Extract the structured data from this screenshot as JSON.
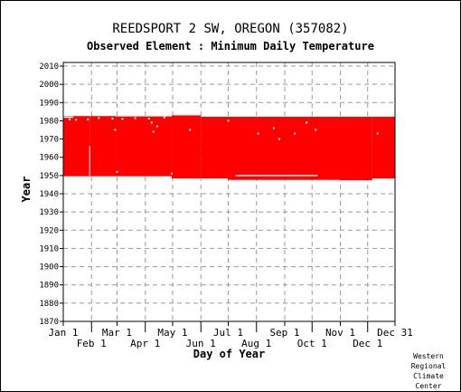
{
  "header": {
    "title": "REEDSPORT 2 SW, OREGON   (357082)",
    "subtitle": "Observed Element : Minimum Daily Temperature"
  },
  "credit": [
    "Western",
    "Regional",
    "Climate",
    "Center"
  ],
  "colors": {
    "data": "#ff0000",
    "gap": "#ffffff",
    "grid": "#999999",
    "axis": "#000000"
  },
  "chart_data": {
    "type": "scatter",
    "title": "REEDSPORT 2 SW, OREGON   (357082)",
    "subtitle": "Observed Element : Minimum Daily Temperature",
    "xlabel": "Day of Year",
    "ylabel": "Year",
    "xlim": [
      1,
      365
    ],
    "ylim": [
      1870,
      2012
    ],
    "y_ticks": [
      1870,
      1880,
      1890,
      1900,
      1910,
      1920,
      1930,
      1940,
      1950,
      1960,
      1970,
      1980,
      1990,
      2000,
      2010
    ],
    "x_ticks_top_row": [
      {
        "label": "Jan 1",
        "day": 1
      },
      {
        "label": "Mar 1",
        "day": 60
      },
      {
        "label": "May 1",
        "day": 121
      },
      {
        "label": "Jul 1",
        "day": 182
      },
      {
        "label": "Sep 1",
        "day": 244
      },
      {
        "label": "Nov 1",
        "day": 305
      },
      {
        "label": "Dec 31",
        "day": 365
      }
    ],
    "x_ticks_bottom_row": [
      {
        "label": "Feb 1",
        "day": 32
      },
      {
        "label": "Apr 1",
        "day": 91
      },
      {
        "label": "Jun 1",
        "day": 152
      },
      {
        "label": "Aug 1",
        "day": 213
      },
      {
        "label": "Oct 1",
        "day": 274
      },
      {
        "label": "Dec 1",
        "day": 335
      }
    ],
    "observed_periods": [
      {
        "day_start": 1,
        "day_end": 30,
        "year_start": 1949.6,
        "year_end": 1982.6
      },
      {
        "day_start": 30,
        "day_end": 59,
        "year_start": 1949.6,
        "year_end": 1982.6
      },
      {
        "day_start": 59,
        "day_end": 120,
        "year_start": 1949.6,
        "year_end": 1982.4
      },
      {
        "day_start": 120,
        "day_end": 152,
        "year_start": 1948.4,
        "year_end": 1983.0
      },
      {
        "day_start": 152,
        "day_end": 182,
        "year_start": 1948.4,
        "year_end": 1982.2
      },
      {
        "day_start": 182,
        "day_end": 305,
        "year_start": 1947.6,
        "year_end": 1982.2
      },
      {
        "day_start": 305,
        "day_end": 340,
        "year_start": 1947.4,
        "year_end": 1982.2
      },
      {
        "day_start": 340,
        "day_end": 365,
        "year_start": 1948.4,
        "year_end": 1982.2
      }
    ],
    "missing_points": [
      {
        "day": 8,
        "year": 1980.8
      },
      {
        "day": 15,
        "year": 1980.6
      },
      {
        "day": 28,
        "year": 1980.8
      },
      {
        "day": 40,
        "year": 1981.6
      },
      {
        "day": 55,
        "year": 1981.2
      },
      {
        "day": 66,
        "year": 1981.0
      },
      {
        "day": 80,
        "year": 1981.4
      },
      {
        "day": 95,
        "year": 1981.2
      },
      {
        "day": 112,
        "year": 1981.8
      },
      {
        "day": 58,
        "year": 1975.0
      },
      {
        "day": 98,
        "year": 1979.0
      },
      {
        "day": 104,
        "year": 1977.0
      },
      {
        "day": 100,
        "year": 1974.0
      },
      {
        "day": 140,
        "year": 1975.0
      },
      {
        "day": 182,
        "year": 1980.0
      },
      {
        "day": 232,
        "year": 1976.0
      },
      {
        "day": 238,
        "year": 1970.0
      },
      {
        "day": 255,
        "year": 1973.0
      },
      {
        "day": 268,
        "year": 1979.0
      },
      {
        "day": 278,
        "year": 1975.0
      },
      {
        "day": 346,
        "year": 1973.0
      },
      {
        "day": 215,
        "year": 1973.0
      },
      {
        "day": 60,
        "year": 1952.0
      },
      {
        "day": 120,
        "year": 1951.0
      }
    ],
    "missing_lines": [
      {
        "day": 30,
        "year_start": 1950.0,
        "year_end": 1966.0
      },
      {
        "day_start": 190,
        "day_end": 280,
        "year": 1950.0
      },
      {
        "day_start": 1,
        "day_end": 12,
        "year": 1982.0
      }
    ]
  }
}
